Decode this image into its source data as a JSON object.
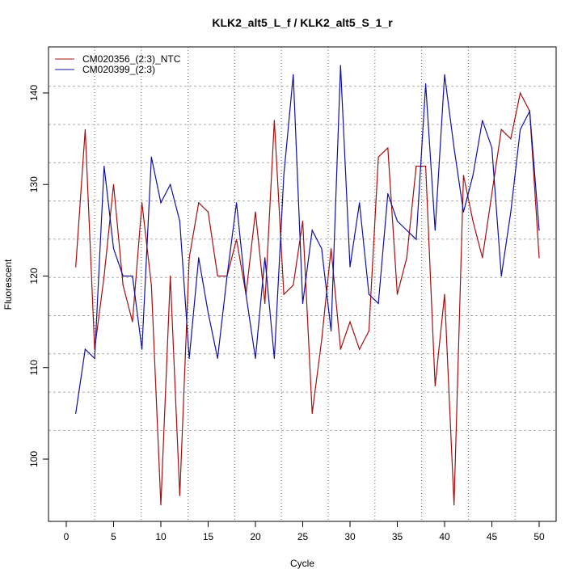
{
  "chart_data": {
    "type": "line",
    "title": "KLK2_alt5_L_f / KLK2_alt5_S_1_r",
    "xlabel": "Cycle",
    "ylabel": "Fluorescent",
    "xlim": [
      -2,
      52
    ],
    "ylim": [
      93,
      145
    ],
    "xticks": [
      0,
      5,
      10,
      15,
      20,
      25,
      30,
      35,
      40,
      45,
      50
    ],
    "yticks": [
      100,
      110,
      120,
      130,
      140
    ],
    "grid": true,
    "legend_position": "top-left",
    "x": [
      1,
      2,
      3,
      4,
      5,
      6,
      7,
      8,
      9,
      10,
      11,
      12,
      13,
      14,
      15,
      16,
      17,
      18,
      19,
      20,
      21,
      22,
      23,
      24,
      25,
      26,
      27,
      28,
      29,
      30,
      31,
      32,
      33,
      34,
      35,
      36,
      37,
      38,
      39,
      40,
      41,
      42,
      43,
      44,
      45,
      46,
      47,
      48,
      49,
      50
    ],
    "series": [
      {
        "name": "CM020356_(2:3)_NTC",
        "color": "#a01010",
        "values": [
          121,
          136,
          112,
          120,
          130,
          119,
          115,
          128,
          119,
          95,
          120,
          96,
          122,
          128,
          127,
          120,
          120,
          124,
          118,
          127,
          117,
          137,
          118,
          119,
          126,
          105,
          113,
          123,
          112,
          115,
          112,
          114,
          133,
          134,
          118,
          122,
          132,
          132,
          108,
          118,
          95,
          131,
          126,
          122,
          129,
          136,
          135,
          140,
          138,
          122
        ]
      },
      {
        "name": "CM020399_(2:3)",
        "color": "#1010a0",
        "values": [
          105,
          112,
          111,
          132,
          123,
          120,
          120,
          112,
          133,
          128,
          130,
          126,
          111,
          122,
          116,
          111,
          120,
          128,
          118,
          111,
          122,
          111,
          131,
          142,
          117,
          125,
          123,
          114,
          143,
          121,
          128,
          118,
          117,
          129,
          126,
          125,
          124,
          141,
          125,
          142,
          134,
          127,
          131,
          137,
          134,
          120,
          127,
          136,
          138,
          125
        ]
      }
    ]
  }
}
